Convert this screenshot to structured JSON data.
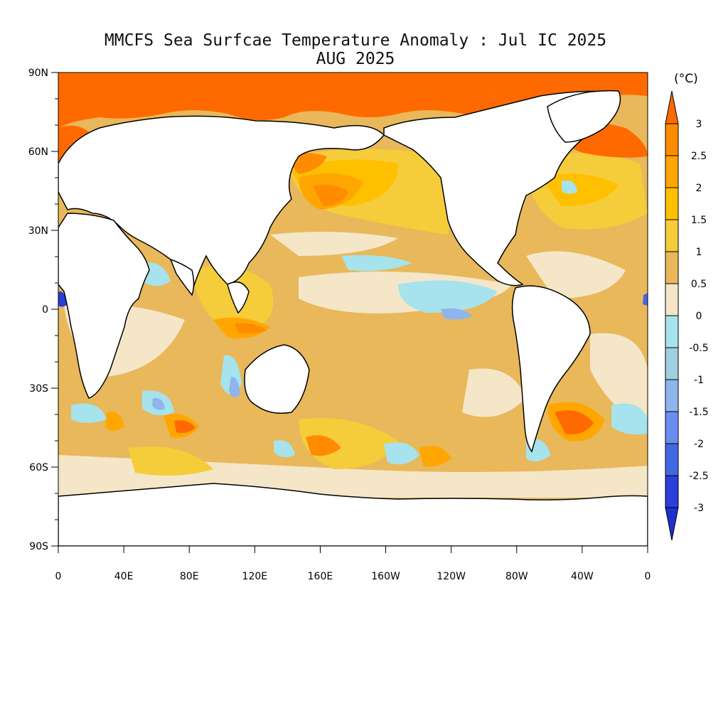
{
  "title": "MMCFS Sea Surfcae Temperature Anomaly : Jul IC 2025",
  "subtitle": "AUG 2025",
  "unit": "(°C)",
  "lat_ticks": [
    "90N",
    "60N",
    "30N",
    "0",
    "30S",
    "60S",
    "90S"
  ],
  "lon_ticks": [
    "0",
    "40E",
    "80E",
    "120E",
    "160E",
    "160W",
    "120W",
    "80W",
    "40W",
    "0"
  ],
  "colorbar": {
    "labels": [
      "3",
      "2.5",
      "2",
      "1.5",
      "1",
      "0.5",
      "0",
      "-0.5",
      "-1",
      "-1.5",
      "-2",
      "-2.5",
      "-3"
    ],
    "colors_top_to_bottom": [
      "#ff6a00",
      "#ff8c00",
      "#ffa600",
      "#ffc000",
      "#f5cc3a",
      "#e8b85a",
      "#f5e6c8",
      "#a6e3ec",
      "#9ecfde",
      "#8fb5ef",
      "#6c8df0",
      "#4169e1",
      "#2a3fd8",
      "#1f2fd0"
    ]
  },
  "map_colors": {
    "ocean_base": "#e8b85a",
    "land": "#ffffff",
    "coastline": "#000000",
    "frame": "#000000"
  }
}
